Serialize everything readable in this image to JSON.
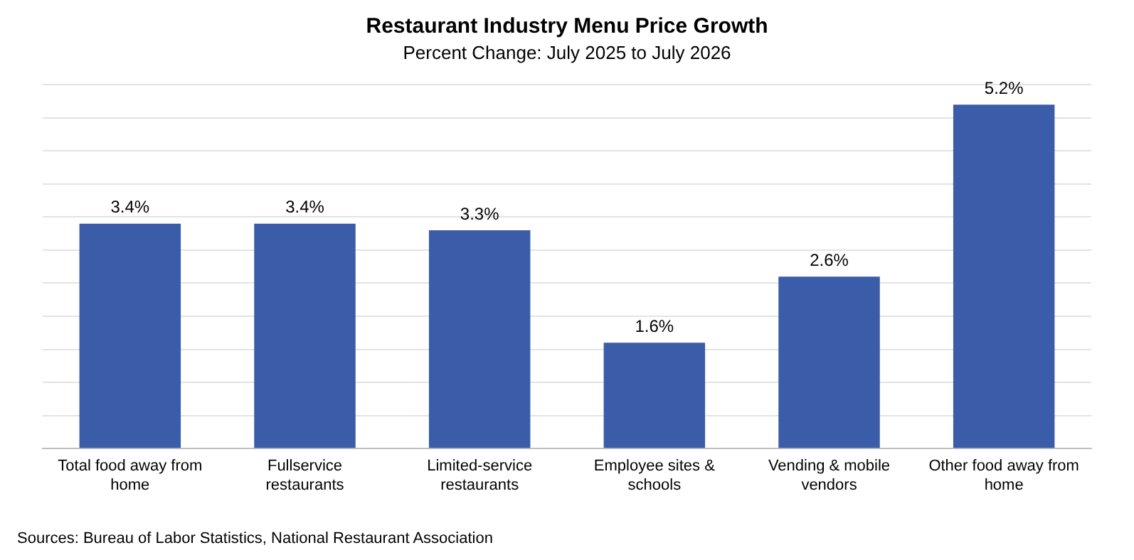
{
  "chart_data": {
    "type": "bar",
    "title": "Restaurant Industry Menu Price Growth",
    "subtitle": "Percent Change: July 2025 to July 2026",
    "categories": [
      "Total food away from home",
      "Fullservice restaurants",
      "Limited-service restaurants",
      "Employee sites & schools",
      "Vending & mobile vendors",
      "Other food away from home"
    ],
    "values": [
      3.4,
      3.4,
      3.3,
      1.6,
      2.6,
      5.2
    ],
    "value_labels": [
      "3.4%",
      "3.4%",
      "3.3%",
      "1.6%",
      "2.6%",
      "5.2%"
    ],
    "color": "#3b5ca8",
    "ylim": [
      0,
      5.5
    ],
    "yticks": [
      {
        "value": 0,
        "label": null
      },
      {
        "value": 0.5,
        "label": null
      },
      {
        "value": 1,
        "label": null
      },
      {
        "value": 1.5,
        "label": null
      },
      {
        "value": 2,
        "label": null
      },
      {
        "value": 2.5,
        "label": null
      },
      {
        "value": 3,
        "label": null
      },
      {
        "value": 3.5,
        "label": null
      },
      {
        "value": 4,
        "label": null
      },
      {
        "value": 4.5,
        "label": null
      },
      {
        "value": 5,
        "label": null
      },
      {
        "value": 5.5,
        "label": null
      }
    ],
    "grid": "y",
    "tick_labels": "x",
    "annotations": [
      "Sources: Bureau of Labor Statistics, National Restaurant Association"
    ]
  }
}
